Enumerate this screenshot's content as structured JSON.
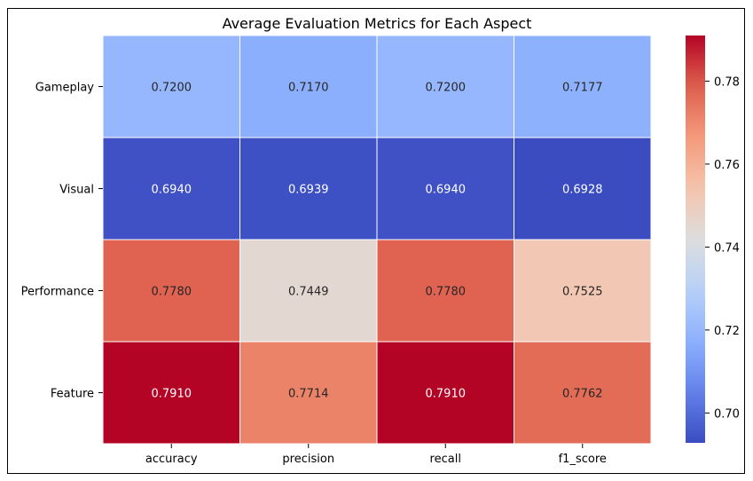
{
  "chart_data": {
    "type": "heatmap",
    "title": "Average Evaluation Metrics for Each Aspect",
    "xlabel": "",
    "ylabel": "",
    "columns": [
      "accuracy",
      "precision",
      "recall",
      "f1_score"
    ],
    "rows": [
      "Gameplay",
      "Visual",
      "Performance",
      "Feature"
    ],
    "values": [
      [
        0.72,
        0.717,
        0.72,
        0.7177
      ],
      [
        0.694,
        0.6939,
        0.694,
        0.6928
      ],
      [
        0.778,
        0.7449,
        0.778,
        0.7525
      ],
      [
        0.791,
        0.7714,
        0.791,
        0.7762
      ]
    ],
    "cell_labels": [
      [
        "0.7200",
        "0.7170",
        "0.7200",
        "0.7177"
      ],
      [
        "0.6940",
        "0.6939",
        "0.6940",
        "0.6928"
      ],
      [
        "0.7780",
        "0.7449",
        "0.7780",
        "0.7525"
      ],
      [
        "0.7910",
        "0.7714",
        "0.7910",
        "0.7762"
      ]
    ],
    "colormap": "coolwarm",
    "vmin": 0.6928,
    "vmax": 0.791,
    "colorbar": {
      "ticks": [
        0.7,
        0.72,
        0.74,
        0.76,
        0.78
      ],
      "tick_labels": [
        "0.70",
        "0.72",
        "0.74",
        "0.76",
        "0.78"
      ],
      "placement": "right"
    },
    "grid": false
  }
}
